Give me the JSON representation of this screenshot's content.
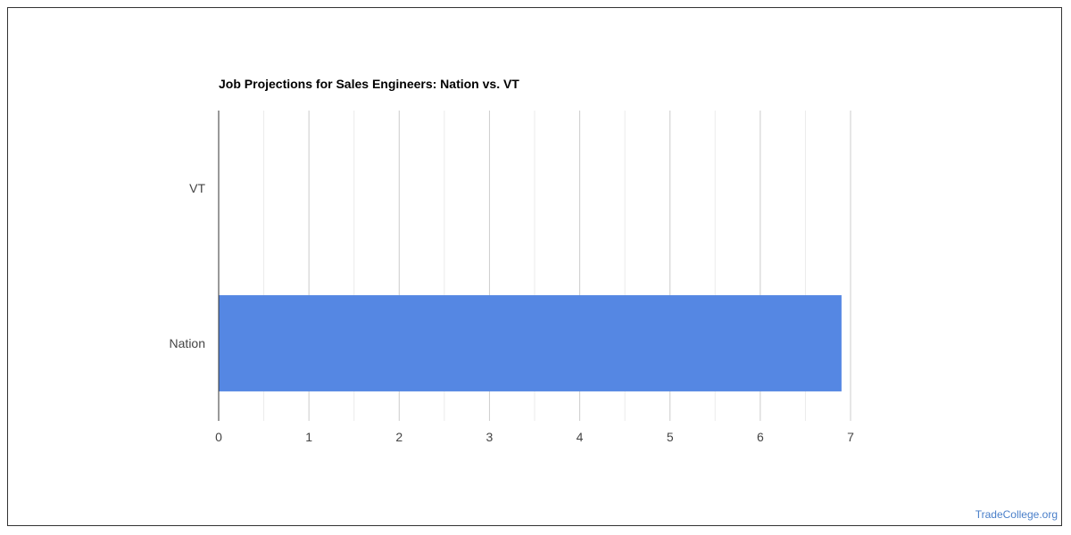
{
  "chart_data": {
    "type": "bar",
    "orientation": "horizontal",
    "title": "Job Projections for Sales Engineers: Nation vs. VT",
    "categories": [
      "VT",
      "Nation"
    ],
    "values": [
      0,
      6.9
    ],
    "xlim": [
      0,
      7
    ],
    "xticks": [
      0,
      1,
      2,
      3,
      4,
      5,
      6,
      7
    ],
    "grid": true,
    "bar_color": "#5587e3"
  },
  "credit": "TradeCollege.org"
}
